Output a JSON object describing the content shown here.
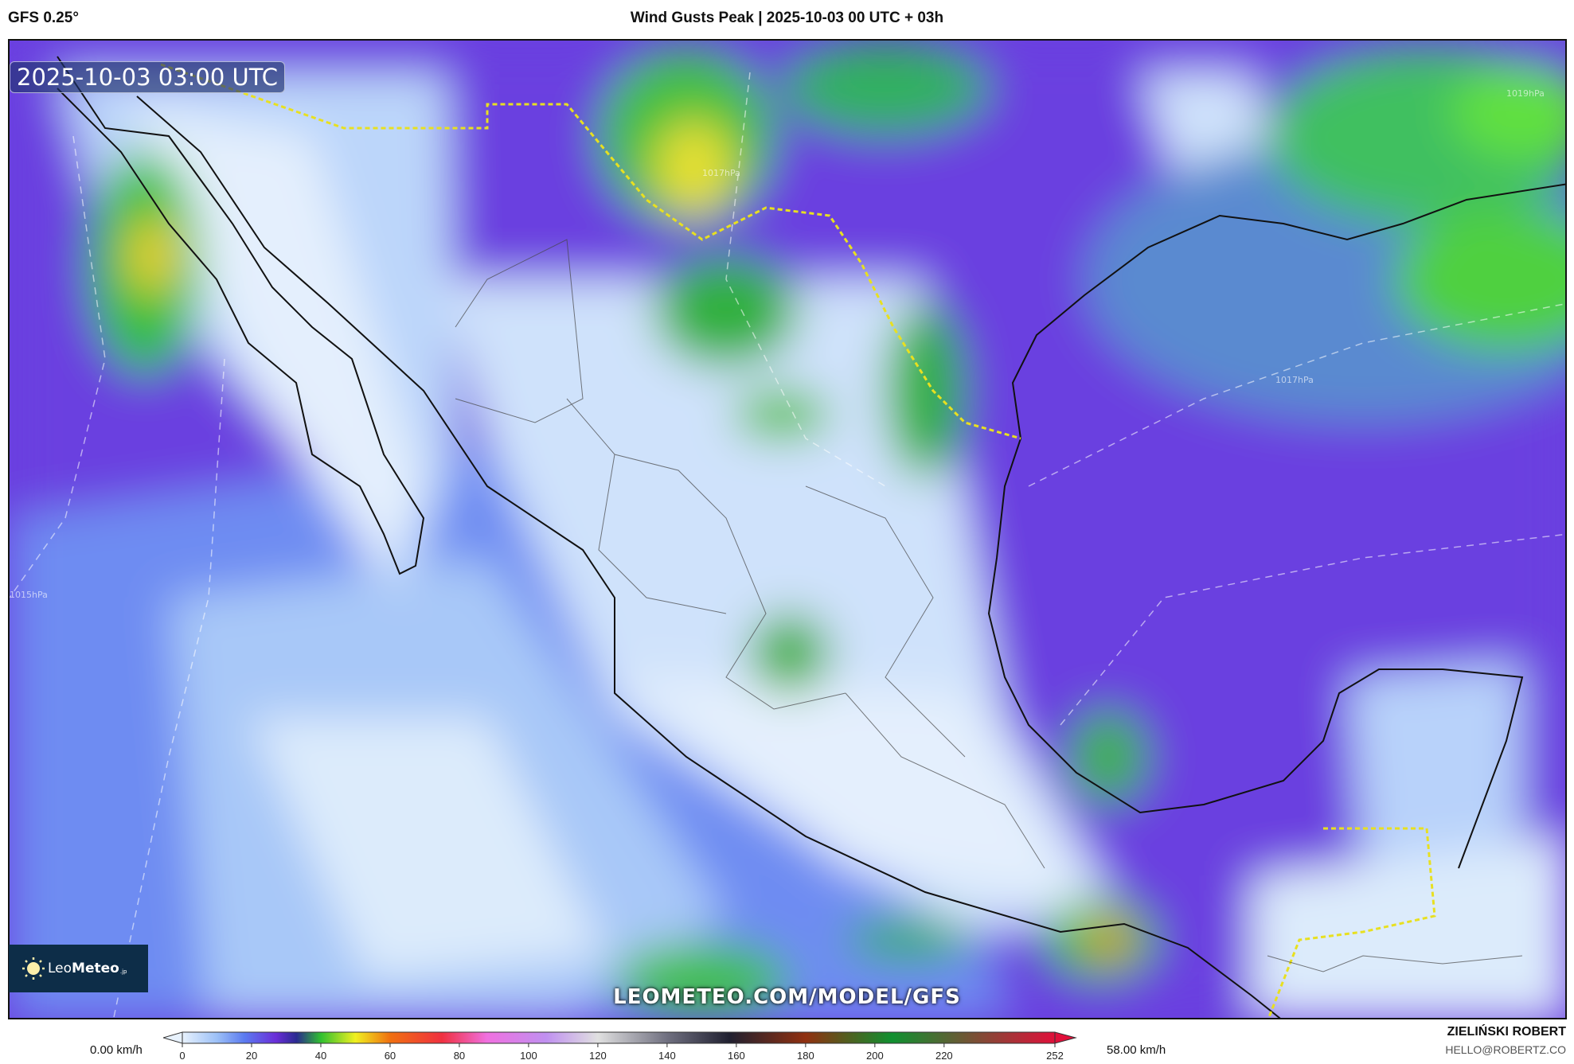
{
  "header": {
    "model": "GFS 0.25°",
    "title": "Wind Gusts Peak | 2025-10-03 00 UTC + 03h"
  },
  "map": {
    "timestamp": "2025-10-03 03:00 UTC",
    "watermark": "LEOMETEO.COM/MODEL/GFS",
    "logo": {
      "text_light": "Leo",
      "text_bold": "Meteo",
      "suffix": ".jp",
      "icon": "sun-icon"
    },
    "isobar_labels": [
      "1017hPa",
      "1015hPa",
      "1019hPa",
      "1017hPa"
    ],
    "colors": {
      "calm": "#dcebfb",
      "light": "#6e9cf5",
      "moderate": "#6a3fe0",
      "strong": "#20c040",
      "gale": "#f0e020",
      "storm": "#f08020"
    }
  },
  "colorbar": {
    "min_label": "0.00 km/h",
    "max_label": "58.00 km/h",
    "ticks": [
      "0",
      "20",
      "40",
      "60",
      "80",
      "100",
      "120",
      "140",
      "160",
      "180",
      "200",
      "220",
      "252"
    ],
    "tick_values": [
      0,
      20,
      40,
      60,
      80,
      100,
      120,
      140,
      160,
      180,
      200,
      220,
      252
    ],
    "range": [
      0,
      252
    ],
    "stops": [
      {
        "v": 0,
        "c": "#e8f2fd"
      },
      {
        "v": 10,
        "c": "#9cc0f7"
      },
      {
        "v": 18,
        "c": "#5b7af0"
      },
      {
        "v": 27,
        "c": "#6a2ed8"
      },
      {
        "v": 33,
        "c": "#2a2a90"
      },
      {
        "v": 40,
        "c": "#30c030"
      },
      {
        "v": 50,
        "c": "#f0f020"
      },
      {
        "v": 60,
        "c": "#f07010"
      },
      {
        "v": 75,
        "c": "#f03040"
      },
      {
        "v": 88,
        "c": "#f070e0"
      },
      {
        "v": 105,
        "c": "#c090f0"
      },
      {
        "v": 120,
        "c": "#e0e0e0"
      },
      {
        "v": 140,
        "c": "#707080"
      },
      {
        "v": 158,
        "c": "#202030"
      },
      {
        "v": 180,
        "c": "#903010"
      },
      {
        "v": 205,
        "c": "#109030"
      },
      {
        "v": 252,
        "c": "#e0103a"
      }
    ]
  },
  "credits": {
    "author": "ZIELIŃSKI ROBERT",
    "email": "HELLO@ROBERTZ.CO"
  }
}
